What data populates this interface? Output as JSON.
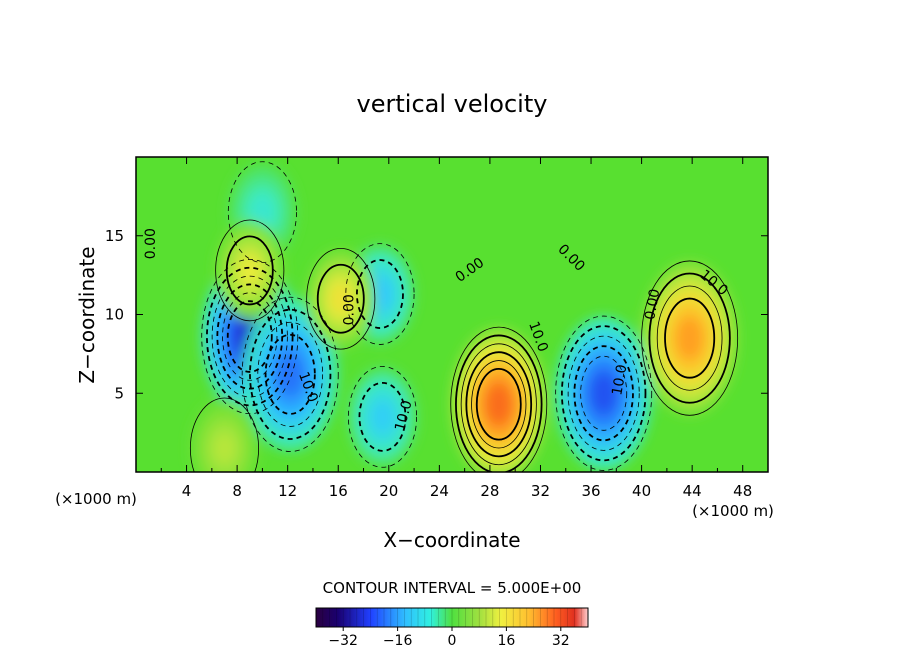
{
  "chart_data": {
    "type": "heatmap",
    "title": "vertical velocity",
    "xlabel": "X−coordinate",
    "ylabel": "Z−coordinate",
    "x_unit_left": "(×1000 m)",
    "x_unit_right": "(×1000 m)",
    "xlim": [
      0,
      50
    ],
    "ylim": [
      0,
      20
    ],
    "x_ticks": [
      4,
      8,
      12,
      16,
      20,
      24,
      28,
      32,
      36,
      40,
      44,
      48
    ],
    "y_ticks": [
      5,
      10,
      15
    ],
    "contour_interval_label": "CONTOUR INTERVAL = 5.000E+00",
    "colorbar": {
      "ticks": [
        -32,
        -16,
        0,
        16,
        32
      ],
      "range": [
        -40,
        40
      ]
    },
    "contour_labels": [
      {
        "text": "0.00",
        "x": 1.5,
        "y": 14.5,
        "angle": -90
      },
      {
        "text": "0.00",
        "x": 17.2,
        "y": 10.3,
        "angle": -90
      },
      {
        "text": "0.00",
        "x": 26.6,
        "y": 12.6,
        "angle": -35
      },
      {
        "text": "0.00",
        "x": 34.2,
        "y": 13.4,
        "angle": 45
      },
      {
        "text": "0.00",
        "x": 41.2,
        "y": 10.6,
        "angle": -80
      },
      {
        "text": "10.0",
        "x": 13.3,
        "y": 5.3,
        "angle": 70
      },
      {
        "text": "10.0",
        "x": 21.5,
        "y": 3.5,
        "angle": -75
      },
      {
        "text": "10.0",
        "x": 31.5,
        "y": 8.5,
        "angle": 70
      },
      {
        "text": "10.0",
        "x": 38.6,
        "y": 5.8,
        "angle": -80
      },
      {
        "text": "10.0",
        "x": 45.5,
        "y": 11.8,
        "angle": 40
      }
    ],
    "field_features": [
      {
        "sign": "negative",
        "x": 9,
        "y": 8.6,
        "peak": -32
      },
      {
        "sign": "negative",
        "x": 12.2,
        "y": 6.2,
        "peak": -22
      },
      {
        "sign": "negative",
        "x": 19.3,
        "y": 11.3,
        "peak": -12
      },
      {
        "sign": "negative",
        "x": 19.5,
        "y": 3.5,
        "peak": -11
      },
      {
        "sign": "negative",
        "x": 37,
        "y": 5,
        "peak": -26
      },
      {
        "sign": "negative",
        "x": 10,
        "y": 16.5,
        "peak": -6
      },
      {
        "sign": "positive",
        "x": 16.2,
        "y": 11.0,
        "peak": 14
      },
      {
        "sign": "positive",
        "x": 9,
        "y": 12.8,
        "peak": 12
      },
      {
        "sign": "positive",
        "x": 28.7,
        "y": 4.3,
        "peak": 30
      },
      {
        "sign": "positive",
        "x": 43.8,
        "y": 8.5,
        "peak": 24
      },
      {
        "sign": "positive",
        "x": 7.0,
        "y": 1.5,
        "peak": 8
      }
    ]
  }
}
